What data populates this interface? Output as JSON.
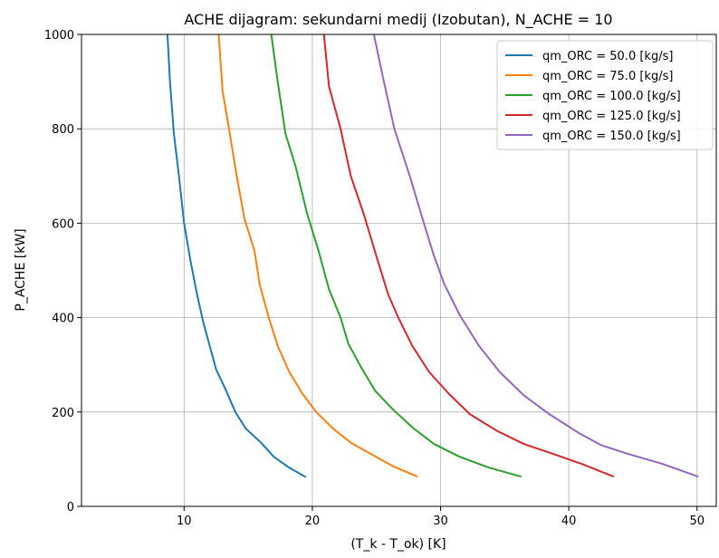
{
  "chart_data": {
    "type": "line",
    "title": "ACHE dijagram: sekundarni medij (Izobutan), N_ACHE = 10",
    "xlabel": "(T_k - T_ok) [K]",
    "ylabel": "P_ACHE [kW]",
    "xlim": [
      2,
      51.5
    ],
    "ylim": [
      0,
      1000
    ],
    "xticks": [
      10,
      20,
      30,
      40,
      50
    ],
    "yticks": [
      0,
      200,
      400,
      600,
      800,
      1000
    ],
    "grid": true,
    "legend_position": "top-right",
    "series": [
      {
        "name": "qm_ORC = 50.0 [kg/s]",
        "color": "#1f77b4",
        "points": [
          [
            8.7,
            1000
          ],
          [
            8.9,
            900
          ],
          [
            9.2,
            790
          ],
          [
            9.6,
            700
          ],
          [
            10.0,
            600
          ],
          [
            10.5,
            520
          ],
          [
            11.0,
            450
          ],
          [
            11.5,
            390
          ],
          [
            12.0,
            340
          ],
          [
            12.5,
            290
          ],
          [
            13.2,
            250
          ],
          [
            14.0,
            200
          ],
          [
            14.8,
            165
          ],
          [
            16.0,
            135
          ],
          [
            17.0,
            105
          ],
          [
            18.2,
            82
          ],
          [
            19.5,
            62
          ]
        ]
      },
      {
        "name": "qm_ORC = 75.0 [kg/s]",
        "color": "#ff7f0e",
        "points": [
          [
            12.7,
            1000
          ],
          [
            13.0,
            880
          ],
          [
            13.5,
            800
          ],
          [
            14.1,
            700
          ],
          [
            14.7,
            610
          ],
          [
            15.5,
            540
          ],
          [
            15.9,
            470
          ],
          [
            16.6,
            400
          ],
          [
            17.3,
            340
          ],
          [
            18.2,
            285
          ],
          [
            19.2,
            240
          ],
          [
            20.3,
            200
          ],
          [
            21.6,
            165
          ],
          [
            23.0,
            135
          ],
          [
            24.5,
            112
          ],
          [
            26.3,
            85
          ],
          [
            28.2,
            63
          ]
        ]
      },
      {
        "name": "qm_ORC = 100.0 [kg/s]",
        "color": "#2ca02c",
        "points": [
          [
            16.8,
            1000
          ],
          [
            17.3,
            900
          ],
          [
            17.9,
            790
          ],
          [
            18.7,
            720
          ],
          [
            19.6,
            620
          ],
          [
            20.5,
            540
          ],
          [
            21.3,
            460
          ],
          [
            22.2,
            400
          ],
          [
            22.8,
            345
          ],
          [
            23.8,
            295
          ],
          [
            24.9,
            245
          ],
          [
            26.3,
            205
          ],
          [
            27.9,
            165
          ],
          [
            29.5,
            132
          ],
          [
            31.5,
            105
          ],
          [
            33.8,
            82
          ],
          [
            36.3,
            63
          ]
        ]
      },
      {
        "name": "qm_ORC = 125.0 [kg/s]",
        "color": "#d62728",
        "points": [
          [
            20.9,
            1000
          ],
          [
            21.3,
            890
          ],
          [
            22.2,
            800
          ],
          [
            23.0,
            700
          ],
          [
            24.0,
            620
          ],
          [
            25.0,
            530
          ],
          [
            25.9,
            450
          ],
          [
            26.7,
            400
          ],
          [
            27.8,
            340
          ],
          [
            29.1,
            285
          ],
          [
            30.6,
            240
          ],
          [
            32.3,
            195
          ],
          [
            34.4,
            160
          ],
          [
            36.5,
            132
          ],
          [
            38.9,
            110
          ],
          [
            41.0,
            90
          ],
          [
            43.5,
            63
          ]
        ]
      },
      {
        "name": "qm_ORC = 150.0 [kg/s]",
        "color": "#9467bd",
        "points": [
          [
            24.8,
            1000
          ],
          [
            25.5,
            910
          ],
          [
            26.4,
            800
          ],
          [
            27.6,
            700
          ],
          [
            28.7,
            600
          ],
          [
            29.5,
            530
          ],
          [
            30.3,
            470
          ],
          [
            31.5,
            405
          ],
          [
            33.0,
            340
          ],
          [
            34.6,
            285
          ],
          [
            36.5,
            235
          ],
          [
            38.5,
            195
          ],
          [
            40.8,
            155
          ],
          [
            42.5,
            130
          ],
          [
            44.5,
            112
          ],
          [
            47.3,
            90
          ],
          [
            50.1,
            63
          ]
        ]
      }
    ]
  }
}
